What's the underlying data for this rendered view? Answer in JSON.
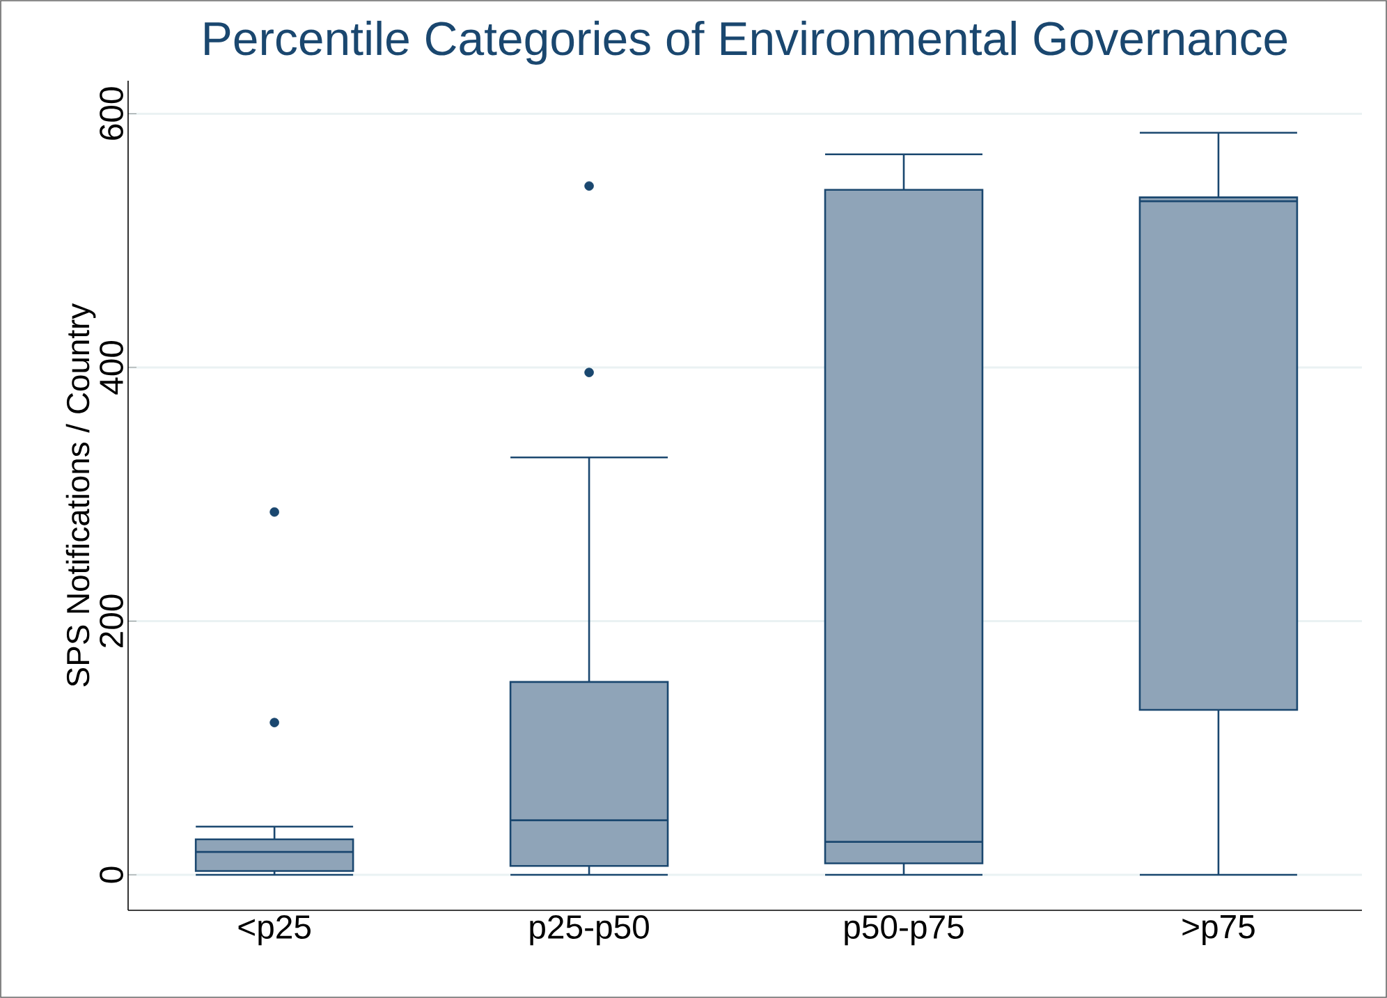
{
  "chart_data": {
    "type": "box",
    "title": "Percentile Categories of Environmental Governance",
    "ylabel": "SPS Notifications / Country",
    "categories": [
      "<p25",
      "p25-p50",
      "p50-p75",
      ">p75"
    ],
    "boxes": [
      {
        "low": 0,
        "q1": 3,
        "median": 18,
        "q3": 28,
        "high": 38,
        "outliers": [
          120,
          286
        ]
      },
      {
        "low": 0,
        "q1": 7,
        "median": 43,
        "q3": 152,
        "high": 329,
        "outliers": [
          396,
          543
        ]
      },
      {
        "low": 0,
        "q1": 9,
        "median": 26,
        "q3": 540,
        "high": 568
      },
      {
        "low": 0,
        "q1": 130,
        "median": 531,
        "q3": 534,
        "high": 585
      }
    ],
    "color": "#8fa4b8",
    "ylim": [
      -28,
      626
    ],
    "yticks": [
      0,
      200,
      400,
      600
    ],
    "grid": "y"
  }
}
